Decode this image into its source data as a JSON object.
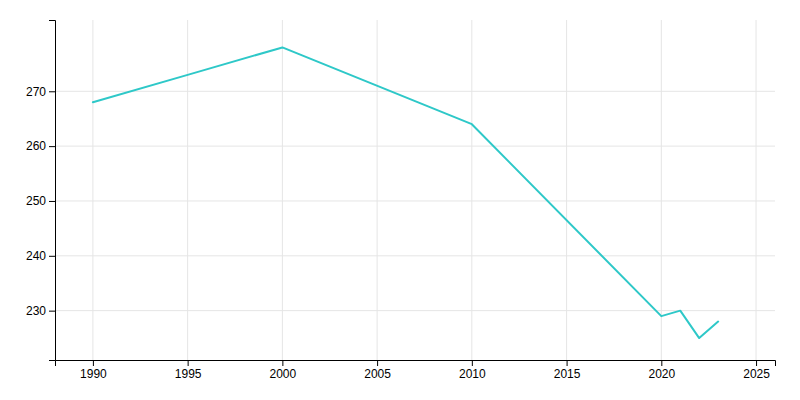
{
  "chart_data": {
    "type": "line",
    "x": [
      1990,
      1995,
      2000,
      2010,
      2020,
      2021,
      2022,
      2023
    ],
    "values": [
      268,
      273,
      278,
      264,
      229,
      230,
      225,
      228
    ],
    "color": "#2ec8c8",
    "xlim": [
      1988,
      2026
    ],
    "ylim": [
      221,
      283
    ],
    "xticks": [
      1990,
      1995,
      2000,
      2005,
      2010,
      2015,
      2020,
      2025
    ],
    "yticks": [
      230,
      240,
      250,
      260,
      270
    ],
    "grid": true
  }
}
